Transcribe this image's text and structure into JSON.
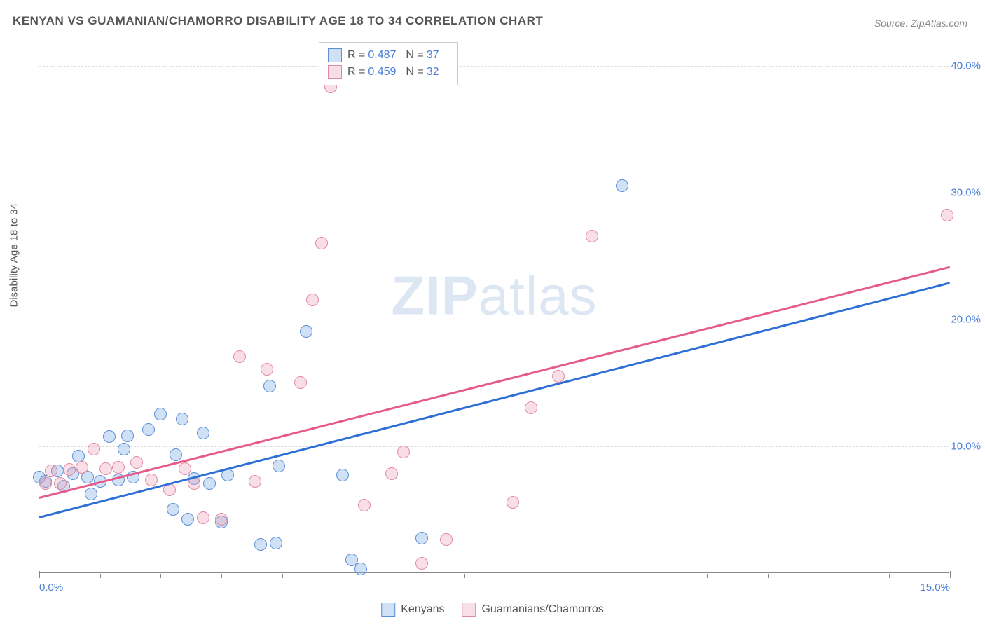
{
  "title": "KENYAN VS GUAMANIAN/CHAMORRO DISABILITY AGE 18 TO 34 CORRELATION CHART",
  "source": "Source: ZipAtlas.com",
  "ylabel": "Disability Age 18 to 34",
  "watermark_bold": "ZIP",
  "watermark_thin": "atlas",
  "chart": {
    "type": "scatter",
    "xlim": [
      0,
      15
    ],
    "ylim": [
      0,
      42
    ],
    "x_ticks_major": [
      0,
      5,
      10,
      15
    ],
    "x_ticks_minor": [
      1,
      2,
      3,
      4,
      6,
      7,
      8,
      9,
      11,
      12,
      13,
      14
    ],
    "x_tick_labels": {
      "0": "0.0%",
      "15": "15.0%"
    },
    "y_gridlines": [
      10,
      20,
      30,
      40
    ],
    "y_tick_labels": {
      "10": "10.0%",
      "20": "20.0%",
      "30": "30.0%",
      "40": "40.0%"
    },
    "background_color": "#ffffff",
    "grid_color": "#dddddd",
    "point_radius": 9,
    "point_border_width": 1.5,
    "fill_opacity": 0.35,
    "trend_line_width": 3
  },
  "series": [
    {
      "name": "Kenyans",
      "color_border": "#5b8fd9",
      "color_fill": "rgba(120,165,225,0.35)",
      "line_color": "#2e6fd6",
      "R": "0.487",
      "N": "37",
      "trend": {
        "x1": 0,
        "y1": 4.5,
        "x2": 15,
        "y2": 23
      },
      "points": [
        [
          0.0,
          7.5
        ],
        [
          0.1,
          7.2
        ],
        [
          0.3,
          8.0
        ],
        [
          0.4,
          6.8
        ],
        [
          0.55,
          7.8
        ],
        [
          0.65,
          9.2
        ],
        [
          0.8,
          7.5
        ],
        [
          0.85,
          6.2
        ],
        [
          1.0,
          7.2
        ],
        [
          1.15,
          10.7
        ],
        [
          1.3,
          7.3
        ],
        [
          1.4,
          9.7
        ],
        [
          1.45,
          10.8
        ],
        [
          1.55,
          7.5
        ],
        [
          1.8,
          11.3
        ],
        [
          2.0,
          12.5
        ],
        [
          2.2,
          5.0
        ],
        [
          2.25,
          9.3
        ],
        [
          2.35,
          12.1
        ],
        [
          2.45,
          4.2
        ],
        [
          2.55,
          7.4
        ],
        [
          2.7,
          11.0
        ],
        [
          2.8,
          7.0
        ],
        [
          3.0,
          4.0
        ],
        [
          3.1,
          7.7
        ],
        [
          3.65,
          2.2
        ],
        [
          3.8,
          14.7
        ],
        [
          3.9,
          2.3
        ],
        [
          3.95,
          8.4
        ],
        [
          4.4,
          19.0
        ],
        [
          5.0,
          7.7
        ],
        [
          5.15,
          1.0
        ],
        [
          5.3,
          0.3
        ],
        [
          6.3,
          2.7
        ],
        [
          9.6,
          30.5
        ]
      ]
    },
    {
      "name": "Guamanians/Chamorros",
      "color_border": "#e28aa3",
      "color_fill": "rgba(235,160,185,0.35)",
      "line_color": "#e65a8a",
      "R": "0.459",
      "N": "32",
      "trend": {
        "x1": 0,
        "y1": 6.0,
        "x2": 15,
        "y2": 24.2
      },
      "points": [
        [
          0.1,
          7.0
        ],
        [
          0.2,
          8.0
        ],
        [
          0.35,
          7.0
        ],
        [
          0.5,
          8.1
        ],
        [
          0.7,
          8.3
        ],
        [
          0.9,
          9.7
        ],
        [
          1.1,
          8.2
        ],
        [
          1.3,
          8.3
        ],
        [
          1.6,
          8.7
        ],
        [
          1.85,
          7.3
        ],
        [
          2.15,
          6.5
        ],
        [
          2.4,
          8.2
        ],
        [
          2.55,
          7.0
        ],
        [
          2.7,
          4.3
        ],
        [
          3.0,
          4.2
        ],
        [
          3.3,
          17.0
        ],
        [
          3.55,
          7.2
        ],
        [
          3.75,
          16.0
        ],
        [
          4.3,
          15.0
        ],
        [
          4.5,
          21.5
        ],
        [
          4.65,
          26.0
        ],
        [
          4.8,
          38.3
        ],
        [
          5.35,
          5.3
        ],
        [
          5.8,
          7.8
        ],
        [
          6.0,
          9.5
        ],
        [
          6.3,
          0.7
        ],
        [
          6.7,
          2.6
        ],
        [
          7.8,
          5.5
        ],
        [
          8.1,
          13.0
        ],
        [
          8.55,
          15.5
        ],
        [
          9.1,
          26.5
        ],
        [
          14.95,
          28.2
        ]
      ]
    }
  ],
  "legend_top": {
    "R_label": "R =",
    "N_label": "N ="
  },
  "legend_bottom": [
    {
      "swatch_border": "#5b8fd9",
      "swatch_fill": "rgba(120,165,225,0.35)",
      "label": "Kenyans"
    },
    {
      "swatch_border": "#e28aa3",
      "swatch_fill": "rgba(235,160,185,0.35)",
      "label": "Guamanians/Chamorros"
    }
  ]
}
